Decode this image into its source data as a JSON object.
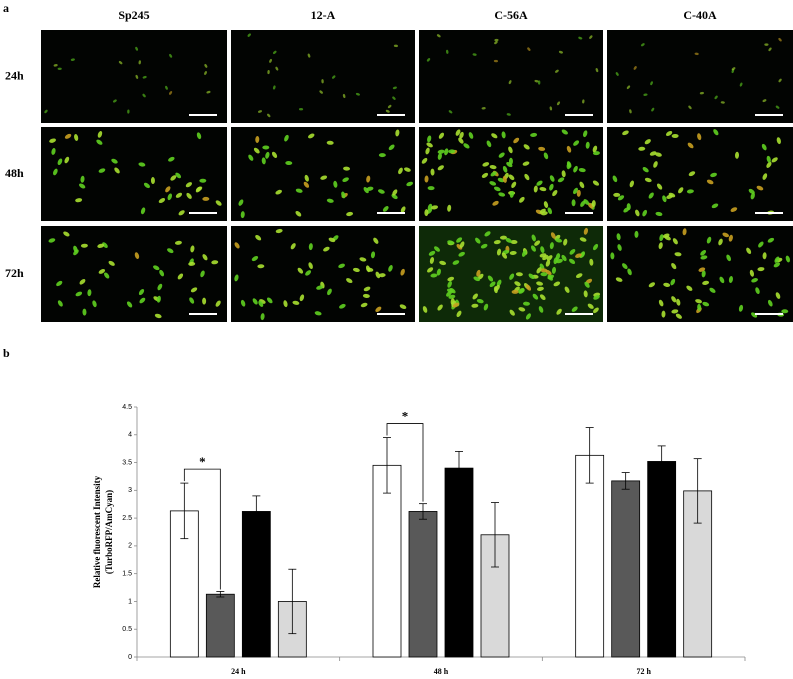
{
  "panel_labels": [
    "a",
    "b"
  ],
  "micrographs": {
    "columns": [
      "Sp245",
      "12-A",
      "C-56A",
      "C-40A"
    ],
    "rows": [
      "24h",
      "48h",
      "72h"
    ]
  },
  "chart_data": {
    "type": "bar",
    "y_label": [
      "Relative fluorescent Intensity",
      "(TurboRFP/AmCyan)"
    ],
    "categories": [
      "24 h",
      "48 h",
      "72 h"
    ],
    "series": [
      {
        "color": "#ffffff",
        "values": [
          2.63,
          3.45,
          3.63
        ],
        "errors": [
          0.5,
          0.5,
          0.5
        ]
      },
      {
        "color": "#595959",
        "values": [
          1.13,
          2.62,
          3.17
        ],
        "errors": [
          0.05,
          0.14,
          0.15
        ]
      },
      {
        "color": "#000000",
        "values": [
          2.62,
          3.4,
          3.52
        ],
        "errors": [
          0.28,
          0.3,
          0.28
        ]
      },
      {
        "color": "#d9d9d9",
        "values": [
          1.0,
          2.2,
          2.99
        ],
        "errors": [
          0.58,
          0.58,
          0.58
        ]
      }
    ],
    "ylim": [
      0,
      4.5
    ],
    "yticks": [
      0,
      0.5,
      1,
      1.5,
      2,
      2.5,
      3,
      3.5,
      4,
      4.5
    ],
    "annotations": [
      {
        "text": "*",
        "category": 0,
        "series": [
          0,
          1
        ]
      },
      {
        "text": "*",
        "category": 1,
        "series": [
          0,
          1
        ]
      }
    ]
  }
}
